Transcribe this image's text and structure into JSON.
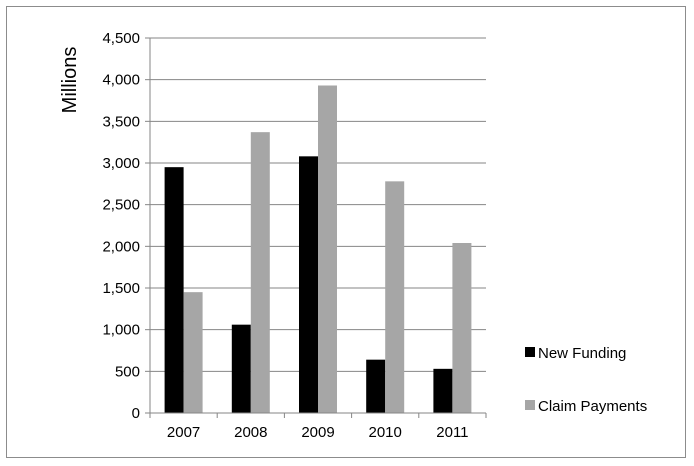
{
  "chart_data": {
    "type": "bar",
    "categories": [
      "2007",
      "2008",
      "2009",
      "2010",
      "2011"
    ],
    "series": [
      {
        "name": "New Funding",
        "values": [
          2950,
          1060,
          3080,
          640,
          530
        ],
        "color": "#000000"
      },
      {
        "name": "Claim Payments",
        "values": [
          1450,
          3370,
          3930,
          2780,
          2040
        ],
        "color": "#a6a6a6"
      }
    ],
    "title": "",
    "xlabel": "",
    "ylabel": "Millions",
    "ylim": [
      0,
      4500
    ],
    "yticks": [
      0,
      500,
      1000,
      1500,
      2000,
      2500,
      3000,
      3500,
      4000,
      4500
    ],
    "ytick_labels": [
      "0",
      "500",
      "1,000",
      "1,500",
      "2,000",
      "2,500",
      "3,000",
      "3,500",
      "4,000",
      "4,500"
    ],
    "grid": "horizontal",
    "gridline_color": "#868686",
    "legend_position": "right"
  }
}
